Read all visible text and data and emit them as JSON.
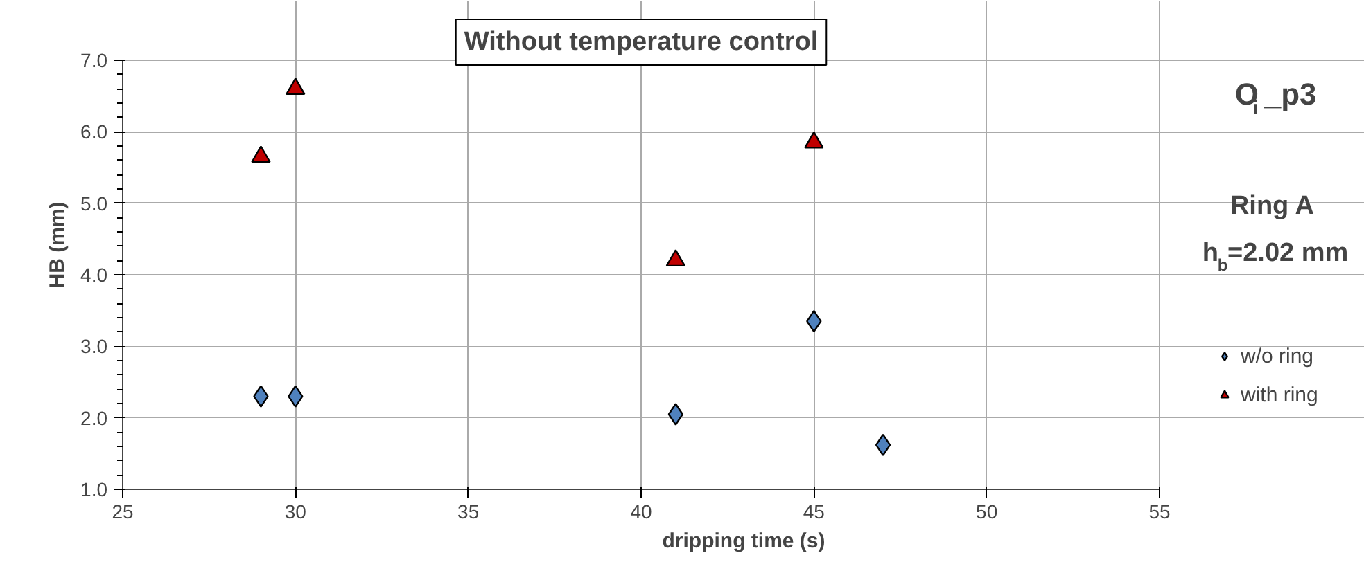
{
  "chart_data": {
    "type": "scatter",
    "title": "Without temperature control",
    "xlabel": "dripping time (s)",
    "ylabel": "HB (mm)",
    "annotations": [
      "O$_{i}$_p3",
      "Ring A",
      "h$_{b}$=2.02 mm"
    ],
    "series": [
      {
        "name": "w/o ring",
        "color": "#4f81bd",
        "marker": "diamond",
        "x": [
          29,
          30,
          41,
          45,
          47
        ],
        "values": [
          2.3,
          2.3,
          2.05,
          3.35,
          1.62
        ]
      },
      {
        "name": "with ring",
        "color": "#c00000",
        "marker": "triangle",
        "x": [
          29,
          30,
          41,
          45
        ],
        "values": [
          5.65,
          6.6,
          4.2,
          5.85
        ]
      }
    ],
    "xlim": [
      25,
      55
    ],
    "xticks": [
      25,
      30,
      35,
      40,
      45,
      50,
      55
    ],
    "ylim": [
      1.0,
      7.0
    ],
    "yticks": [
      {
        "value": 1,
        "label": "1.0"
      },
      {
        "value": 2,
        "label": "2.0"
      },
      {
        "value": 3,
        "label": "3.0"
      },
      {
        "value": 4,
        "label": "4.0"
      },
      {
        "value": 5,
        "label": "5.0"
      },
      {
        "value": 6,
        "label": "6.0"
      },
      {
        "value": 7,
        "label": "7.0"
      }
    ],
    "grid": true,
    "legend": "right"
  }
}
